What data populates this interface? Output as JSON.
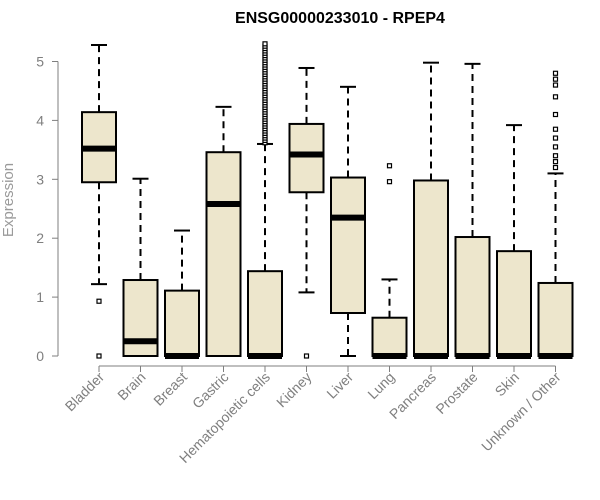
{
  "chart_data": {
    "type": "boxplot",
    "title": "ENSG00000233010 - RPEP4",
    "ylabel": "Expression",
    "xlabel": "",
    "ylim": [
      0,
      5.3
    ],
    "yticks": [
      "0",
      "1",
      "2",
      "3",
      "4",
      "5"
    ],
    "box_color": "#ede6cc",
    "categories": [
      "Bladder",
      "Brain",
      "Breast",
      "Gastric",
      "Hematopoietic cells",
      "Kidney",
      "Liver",
      "Lung",
      "Pancreas",
      "Prostate",
      "Skin",
      "Unknown / Other"
    ],
    "boxes": [
      {
        "q1": 2.95,
        "median": 3.52,
        "q3": 4.14,
        "whisker_low": 1.22,
        "whisker_high": 5.28,
        "outliers": [
          0.93,
          0.0
        ]
      },
      {
        "q1": 0.0,
        "median": 0.25,
        "q3": 1.29,
        "whisker_low": 0.0,
        "whisker_high": 3.01,
        "outliers": []
      },
      {
        "q1": 0.0,
        "median": 0.0,
        "q3": 1.11,
        "whisker_low": 0.0,
        "whisker_high": 2.13,
        "outliers": []
      },
      {
        "q1": 0.0,
        "median": 2.58,
        "q3": 3.46,
        "whisker_low": 0.0,
        "whisker_high": 4.23,
        "outliers": []
      },
      {
        "q1": 0.0,
        "median": 0.0,
        "q3": 1.44,
        "whisker_low": 0.0,
        "whisker_high": 3.6,
        "outliers": [
          3.62,
          3.66,
          3.7,
          3.74,
          3.78,
          3.82,
          3.86,
          3.9,
          3.94,
          3.98,
          4.02,
          4.06,
          4.1,
          4.14,
          4.18,
          4.22,
          4.26,
          4.3,
          4.34,
          4.38,
          4.42,
          4.46,
          4.5,
          4.54,
          4.58,
          4.62,
          4.66,
          4.7,
          4.74,
          4.78,
          4.82,
          4.86,
          4.9,
          4.94,
          4.98,
          5.02,
          5.06,
          5.1,
          5.14,
          5.18,
          5.22,
          5.26,
          5.3
        ]
      },
      {
        "q1": 2.78,
        "median": 3.42,
        "q3": 3.94,
        "whisker_low": 1.08,
        "whisker_high": 4.89,
        "outliers": [
          0.0
        ]
      },
      {
        "q1": 0.73,
        "median": 2.35,
        "q3": 3.03,
        "whisker_low": 0.0,
        "whisker_high": 4.57,
        "outliers": []
      },
      {
        "q1": 0.0,
        "median": 0.0,
        "q3": 0.65,
        "whisker_low": 0.0,
        "whisker_high": 1.3,
        "outliers": [
          2.96,
          3.23
        ]
      },
      {
        "q1": 0.0,
        "median": 0.0,
        "q3": 2.98,
        "whisker_low": 0.0,
        "whisker_high": 4.98,
        "outliers": []
      },
      {
        "q1": 0.0,
        "median": 0.0,
        "q3": 2.02,
        "whisker_low": 0.0,
        "whisker_high": 4.96,
        "outliers": []
      },
      {
        "q1": 0.0,
        "median": 0.0,
        "q3": 1.78,
        "whisker_low": 0.0,
        "whisker_high": 3.92,
        "outliers": []
      },
      {
        "q1": 0.0,
        "median": 0.0,
        "q3": 1.24,
        "whisker_low": 0.0,
        "whisker_high": 3.1,
        "outliers": [
          3.2,
          3.3,
          3.4,
          3.55,
          3.7,
          3.85,
          4.1,
          4.4,
          4.6,
          4.7,
          4.8
        ]
      }
    ]
  }
}
